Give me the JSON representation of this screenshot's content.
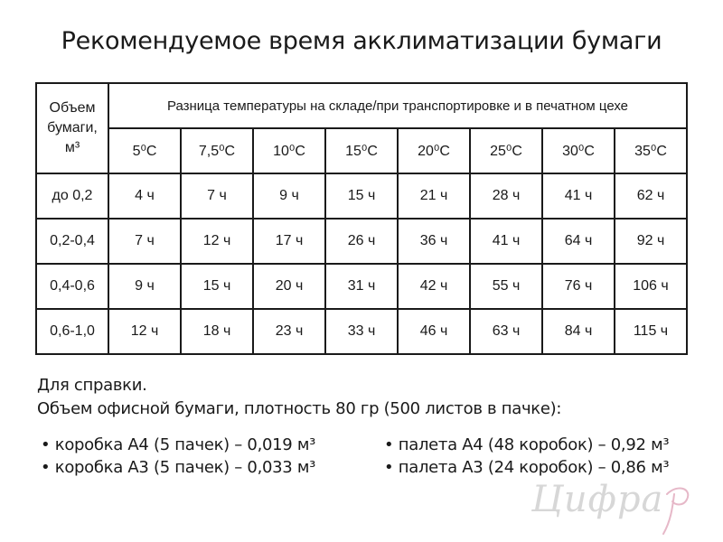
{
  "title": "Рекомендуемое время акклиматизации бумаги",
  "table": {
    "corner_lines": [
      "Объем",
      "бумаги,",
      "м³"
    ],
    "span_header": "Разница температуры на складе/при транспортировке и в печатном цехе",
    "temps": [
      "5⁰С",
      "7,5⁰С",
      "10⁰С",
      "15⁰С",
      "20⁰С",
      "25⁰С",
      "30⁰С",
      "35⁰С"
    ],
    "rows": [
      {
        "label": "до 0,2",
        "cells": [
          "4 ч",
          "7 ч",
          "9 ч",
          "15 ч",
          "21 ч",
          "28 ч",
          "41 ч",
          "62 ч"
        ]
      },
      {
        "label": "0,2-0,4",
        "cells": [
          "7 ч",
          "12 ч",
          "17 ч",
          "26 ч",
          "36 ч",
          "41 ч",
          "64 ч",
          "92 ч"
        ]
      },
      {
        "label": "0,4-0,6",
        "cells": [
          "9 ч",
          "15 ч",
          "20 ч",
          "31 ч",
          "42 ч",
          "55 ч",
          "76 ч",
          "106 ч"
        ]
      },
      {
        "label": "0,6-1,0",
        "cells": [
          "12 ч",
          "18 ч",
          "23 ч",
          "33 ч",
          "46 ч",
          "63 ч",
          "84 ч",
          "115 ч"
        ]
      }
    ]
  },
  "reference": {
    "line1": "Для справки.",
    "line2": "Объем офисной бумаги, плотность 80 гр (500 листов в пачке):"
  },
  "bullets_left": [
    "коробка А4 (5 пачек) – 0,019 м³",
    "коробка А3 (5 пачек) – 0,033 м³"
  ],
  "bullets_right": [
    "палета А4 (48 коробок) – 0,92 м³",
    "палета А3 (24 коробок) – 0,86 м³"
  ],
  "logo": {
    "text": "Цифра",
    "color": "#d7d7d7",
    "accent_color": "#e6b8c8"
  }
}
